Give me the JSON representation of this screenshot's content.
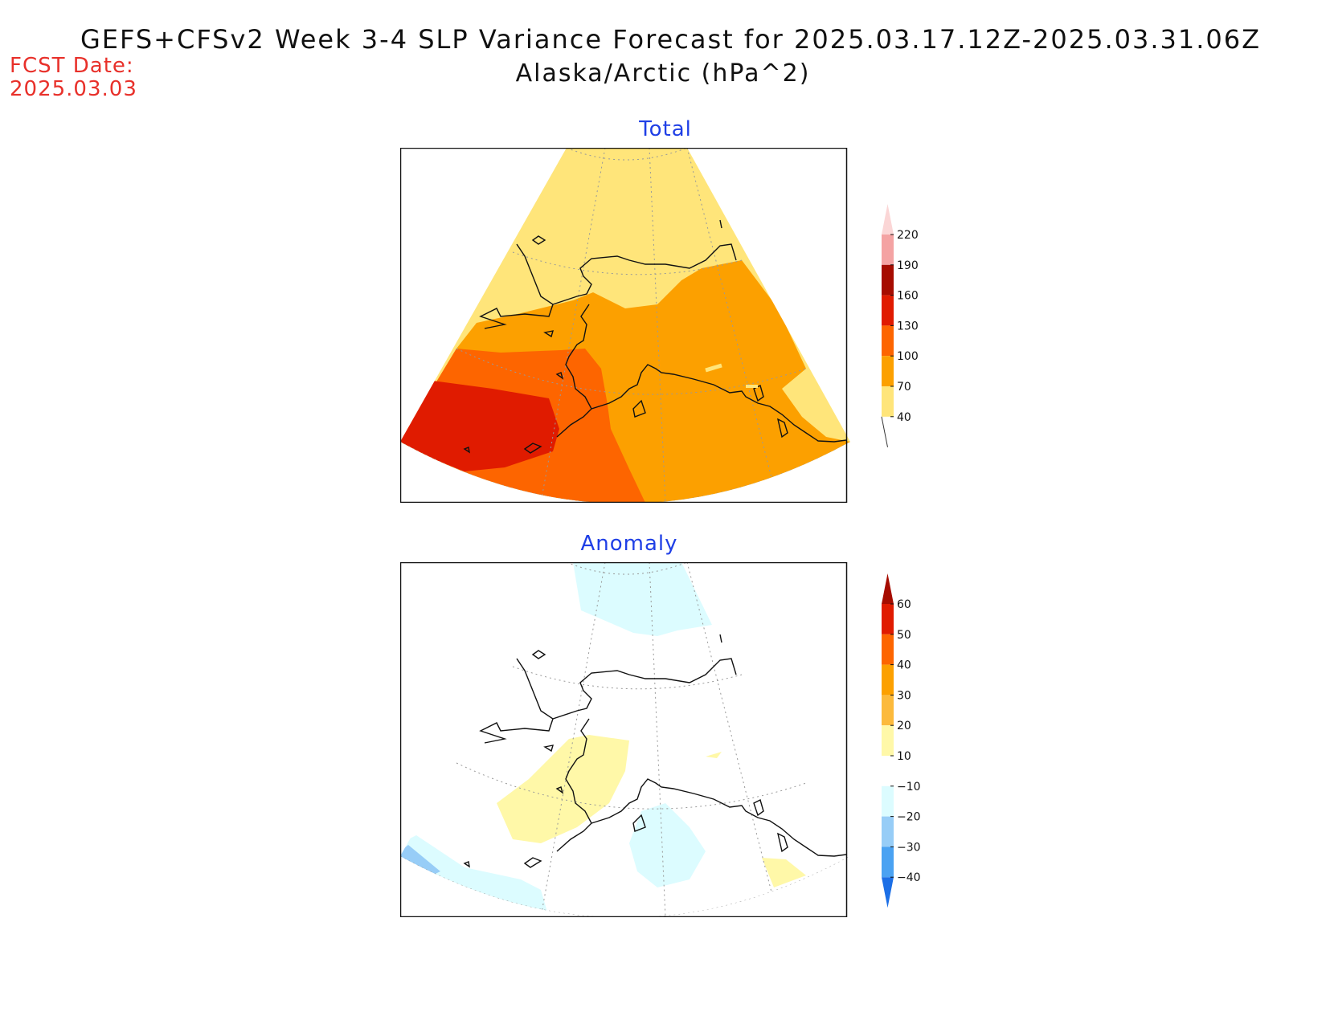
{
  "header": {
    "title": "GEFS+CFSv2 Week 3-4 SLP Variance Forecast for 2025.03.17.12Z-2025.03.31.06Z",
    "subtitle": "Alaska/Arctic (hPa^2)",
    "fcst_label": "FCST Date:",
    "fcst_date": "2025.03.03"
  },
  "panels": {
    "total": {
      "title": "Total",
      "colorbar": {
        "levels": [
          "220",
          "190",
          "160",
          "130",
          "100",
          "70",
          "40"
        ],
        "colors": {
          "above_220": "#fbd6d6",
          "190_220": "#f4a3a3",
          "160_190": "#a60c00",
          "130_160": "#e01b00",
          "100_130": "#fd6500",
          "70_100": "#fca000",
          "40_70": "#ffe57a"
        }
      }
    },
    "anomaly": {
      "title": "Anomaly",
      "colorbar": {
        "levels": [
          "60",
          "50",
          "40",
          "30",
          "20",
          "10",
          "-10",
          "-20",
          "-30",
          "-40"
        ],
        "colors": {
          "above_60": "#a60c00",
          "50_60": "#e01b00",
          "40_50": "#fd6500",
          "30_40": "#fca000",
          "20_30": "#fcba3c",
          "10_20": "#fff8a8",
          "neg10_10": "#ffffff",
          "neg20_neg10": "#dcfcff",
          "neg30_neg20": "#97cdf7",
          "neg40_neg30": "#4aa2f2",
          "below_neg40": "#1c6fe6"
        }
      }
    }
  }
}
